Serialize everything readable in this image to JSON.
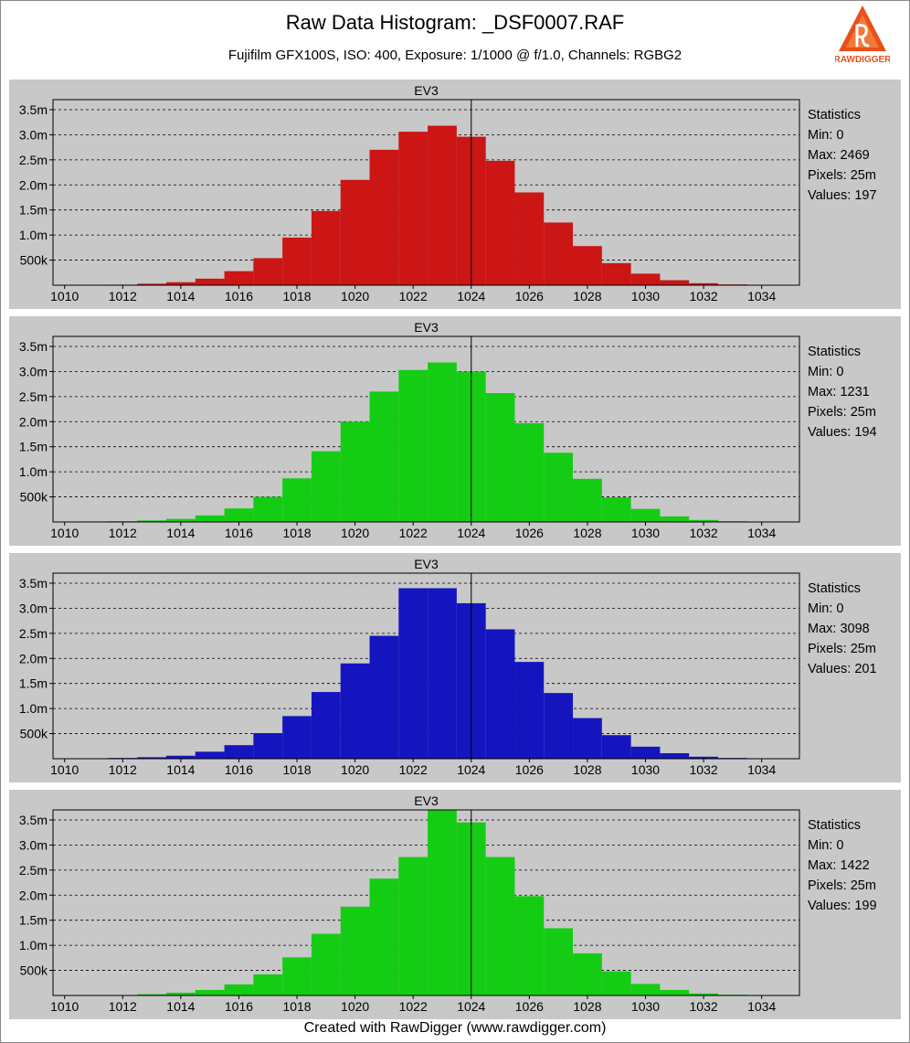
{
  "title": "Raw Data Histogram: _DSF0007.RAF",
  "subtitle": "Fujifilm GFX100S, ISO: 400, Exposure: 1/1000 @ f/1.0, Channels: RGBG2",
  "footer": "Created with RawDigger (www.rawdigger.com)",
  "logo_text": "RAWDIGGER",
  "colors": {
    "red": "#cc1515",
    "green": "#15cc15",
    "blue": "#1515c0",
    "panel": "#c8c8c8"
  },
  "chart_data": [
    {
      "type": "bar",
      "channel": "R",
      "title": "EV3",
      "color": "#cc1515",
      "x": [
        1012,
        1013,
        1014,
        1015,
        1016,
        1017,
        1018,
        1019,
        1020,
        1021,
        1022,
        1023,
        1024,
        1025,
        1026,
        1027,
        1028,
        1029,
        1030,
        1031,
        1032,
        1033
      ],
      "values": [
        10000,
        30000,
        60000,
        130000,
        280000,
        540000,
        950000,
        1480000,
        2100000,
        2700000,
        3060000,
        3180000,
        2960000,
        2480000,
        1850000,
        1250000,
        780000,
        440000,
        230000,
        100000,
        40000,
        15000
      ],
      "xlim": [
        1009.6,
        1035.3
      ],
      "ylim": [
        0,
        3700000
      ],
      "xticks": [
        1010,
        1012,
        1014,
        1016,
        1018,
        1020,
        1022,
        1024,
        1026,
        1028,
        1030,
        1032,
        1034
      ],
      "yticks": [
        500000,
        1000000,
        1500000,
        2000000,
        2500000,
        3000000,
        3500000
      ],
      "ytick_labels": [
        "500k",
        "1.0m",
        "1.5m",
        "2.0m",
        "2.5m",
        "3.0m",
        "3.5m"
      ],
      "marker_x": 1024,
      "stats": {
        "heading": "Statistics",
        "min": "Min: 0",
        "max": "Max: 2469",
        "pixels": "Pixels: 25m",
        "values": "Values: 197"
      }
    },
    {
      "type": "bar",
      "channel": "G",
      "title": "EV3",
      "color": "#15cc15",
      "x": [
        1012,
        1013,
        1014,
        1015,
        1016,
        1017,
        1018,
        1019,
        1020,
        1021,
        1022,
        1023,
        1024,
        1025,
        1026,
        1027,
        1028,
        1029,
        1030,
        1031,
        1032,
        1033
      ],
      "values": [
        15000,
        30000,
        60000,
        130000,
        270000,
        500000,
        870000,
        1410000,
        2000000,
        2600000,
        3030000,
        3180000,
        3000000,
        2570000,
        1970000,
        1380000,
        860000,
        490000,
        260000,
        110000,
        40000,
        15000
      ],
      "xlim": [
        1009.6,
        1035.3
      ],
      "ylim": [
        0,
        3700000
      ],
      "xticks": [
        1010,
        1012,
        1014,
        1016,
        1018,
        1020,
        1022,
        1024,
        1026,
        1028,
        1030,
        1032,
        1034
      ],
      "yticks": [
        500000,
        1000000,
        1500000,
        2000000,
        2500000,
        3000000,
        3500000
      ],
      "ytick_labels": [
        "500k",
        "1.0m",
        "1.5m",
        "2.0m",
        "2.5m",
        "3.0m",
        "3.5m"
      ],
      "marker_x": 1024,
      "stats": {
        "heading": "Statistics",
        "min": "Min: 0",
        "max": "Max: 1231",
        "pixels": "Pixels: 25m",
        "values": "Values: 194"
      }
    },
    {
      "type": "bar",
      "channel": "B",
      "title": "EV3",
      "color": "#1515c0",
      "x": [
        1012,
        1013,
        1014,
        1015,
        1016,
        1017,
        1018,
        1019,
        1020,
        1021,
        1022,
        1023,
        1024,
        1025,
        1026,
        1027,
        1028,
        1029,
        1030,
        1031,
        1032,
        1033
      ],
      "values": [
        15000,
        30000,
        60000,
        140000,
        270000,
        510000,
        850000,
        1330000,
        1900000,
        2450000,
        3400000,
        3400000,
        3100000,
        2580000,
        1930000,
        1310000,
        810000,
        470000,
        240000,
        110000,
        40000,
        15000
      ],
      "xlim": [
        1009.6,
        1035.3
      ],
      "ylim": [
        0,
        3700000
      ],
      "xticks": [
        1010,
        1012,
        1014,
        1016,
        1018,
        1020,
        1022,
        1024,
        1026,
        1028,
        1030,
        1032,
        1034
      ],
      "yticks": [
        500000,
        1000000,
        1500000,
        2000000,
        2500000,
        3000000,
        3500000
      ],
      "ytick_labels": [
        "500k",
        "1.0m",
        "1.5m",
        "2.0m",
        "2.5m",
        "3.0m",
        "3.5m"
      ],
      "marker_x": 1024,
      "stats": {
        "heading": "Statistics",
        "min": "Min: 0",
        "max": "Max: 3098",
        "pixels": "Pixels: 25m",
        "values": "Values: 201"
      }
    },
    {
      "type": "bar",
      "channel": "G2",
      "title": "EV3",
      "color": "#15cc15",
      "x": [
        1012,
        1013,
        1014,
        1015,
        1016,
        1017,
        1018,
        1019,
        1020,
        1021,
        1022,
        1023,
        1024,
        1025,
        1026,
        1027,
        1028,
        1029,
        1030,
        1031,
        1032,
        1033
      ],
      "values": [
        10000,
        25000,
        55000,
        110000,
        220000,
        420000,
        760000,
        1230000,
        1770000,
        2330000,
        2760000,
        3700000,
        3450000,
        2760000,
        1980000,
        1340000,
        840000,
        480000,
        230000,
        110000,
        40000,
        15000
      ],
      "xlim": [
        1009.6,
        1035.3
      ],
      "ylim": [
        0,
        3700000
      ],
      "xticks": [
        1010,
        1012,
        1014,
        1016,
        1018,
        1020,
        1022,
        1024,
        1026,
        1028,
        1030,
        1032,
        1034
      ],
      "yticks": [
        500000,
        1000000,
        1500000,
        2000000,
        2500000,
        3000000,
        3500000
      ],
      "ytick_labels": [
        "500k",
        "1.0m",
        "1.5m",
        "2.0m",
        "2.5m",
        "3.0m",
        "3.5m"
      ],
      "marker_x": 1024,
      "stats": {
        "heading": "Statistics",
        "min": "Min: 0",
        "max": "Max: 1422",
        "pixels": "Pixels: 25m",
        "values": "Values: 199"
      }
    }
  ]
}
